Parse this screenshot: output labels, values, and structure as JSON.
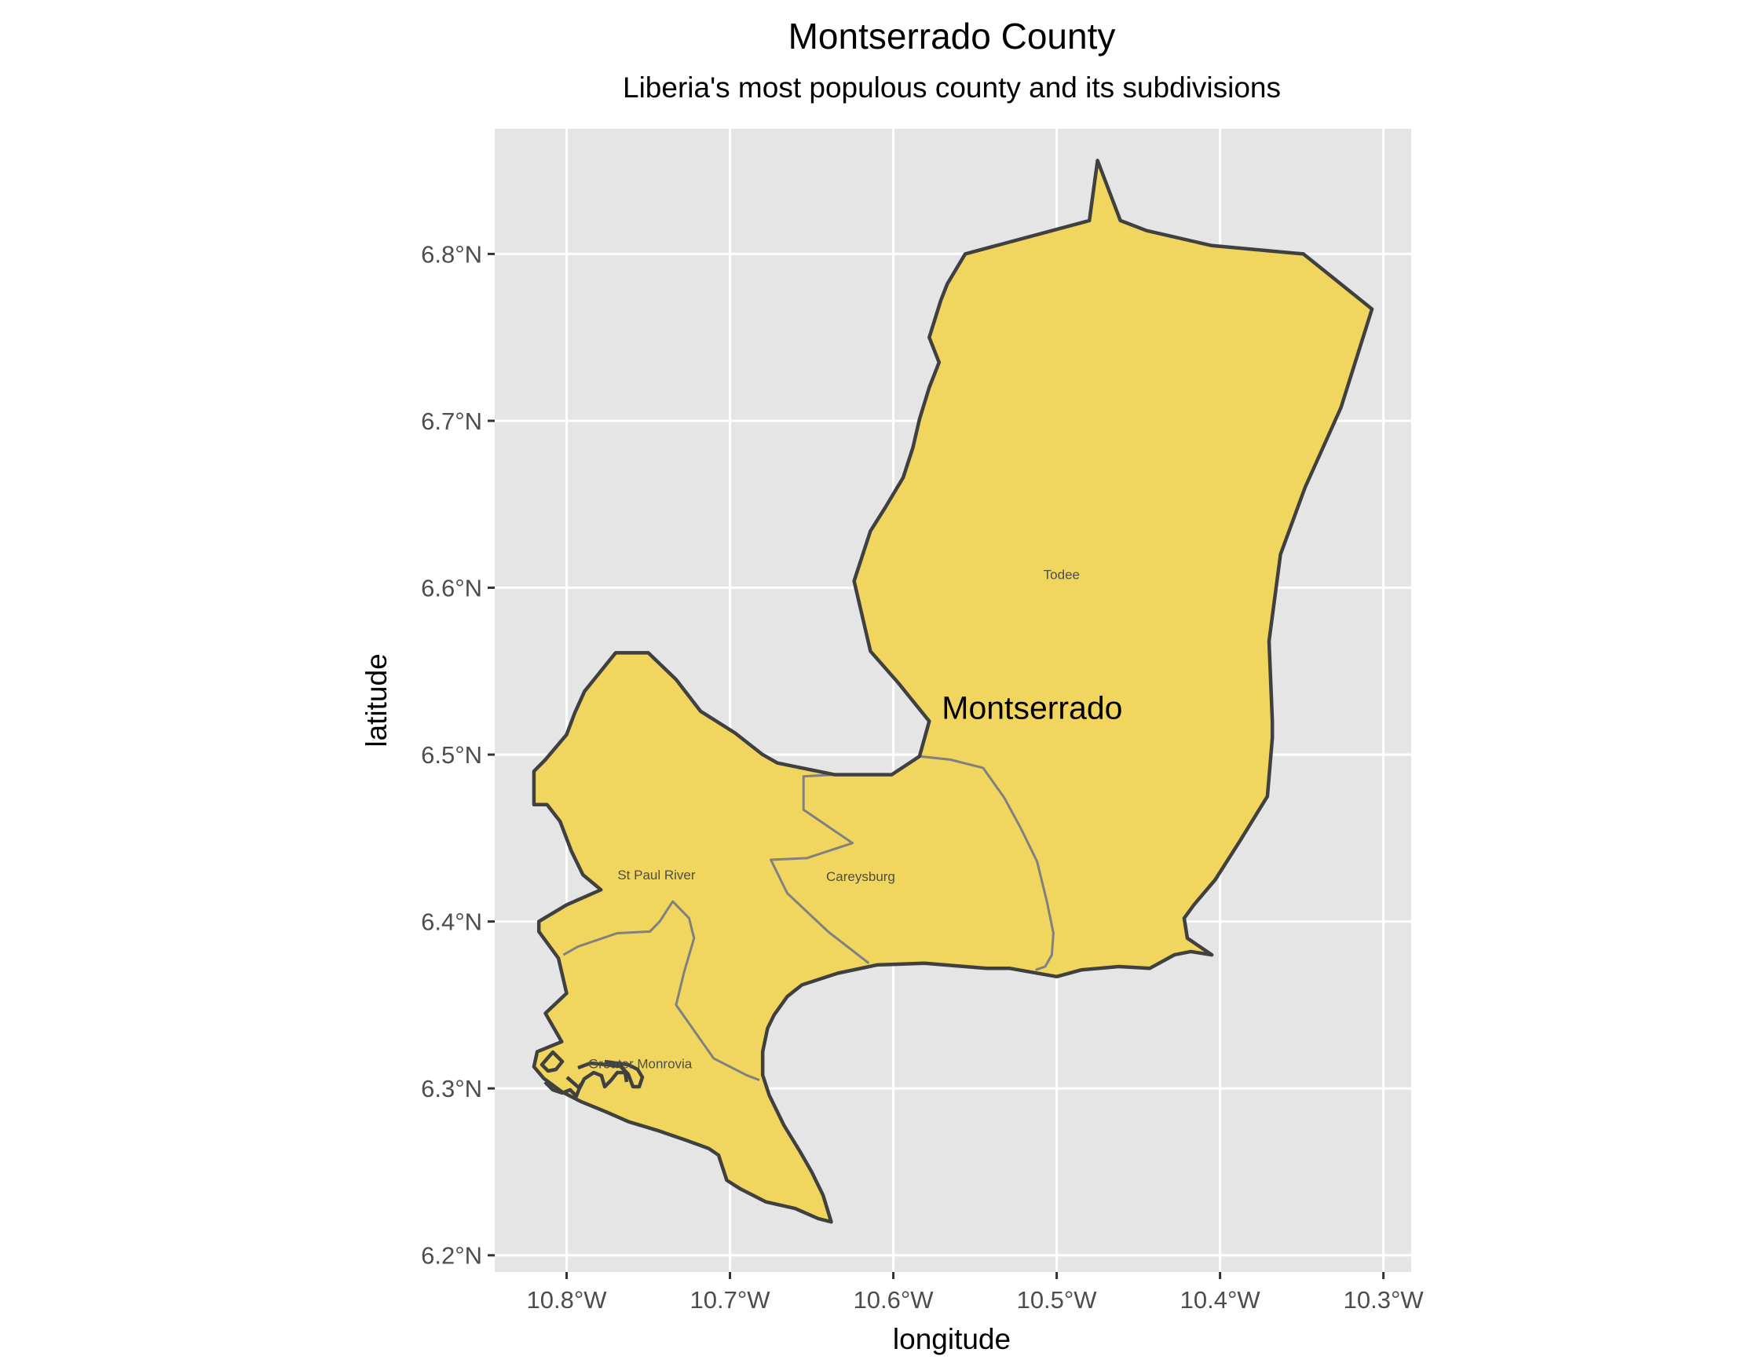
{
  "title": "Montserrado County",
  "subtitle": "Liberia's most populous county and its subdivisions",
  "x_axis": {
    "label": "longitude",
    "ticks": [
      {
        "value": -10.8,
        "label": "10.8°W"
      },
      {
        "value": -10.7,
        "label": "10.7°W"
      },
      {
        "value": -10.6,
        "label": "10.6°W"
      },
      {
        "value": -10.5,
        "label": "10.5°W"
      },
      {
        "value": -10.4,
        "label": "10.4°W"
      },
      {
        "value": -10.3,
        "label": "10.3°W"
      }
    ],
    "range": [
      -10.844,
      -10.283
    ]
  },
  "y_axis": {
    "label": "latitude",
    "ticks": [
      {
        "value": 6.2,
        "label": "6.2°N"
      },
      {
        "value": 6.3,
        "label": "6.3°N"
      },
      {
        "value": 6.4,
        "label": "6.4°N"
      },
      {
        "value": 6.5,
        "label": "6.5°N"
      },
      {
        "value": 6.6,
        "label": "6.6°N"
      },
      {
        "value": 6.7,
        "label": "6.7°N"
      },
      {
        "value": 6.8,
        "label": "6.8°N"
      }
    ],
    "range": [
      6.19,
      6.875
    ]
  },
  "colors": {
    "panel_bg": "#e5e5e5",
    "grid": "#ffffff",
    "fill": "#f0d55f",
    "county_border": "#404040",
    "district_border": "#808080",
    "tick_text": "#4d4d4d"
  },
  "county": {
    "name": "Montserrado",
    "label_at": [
      -10.515,
      6.528
    ],
    "outline": [
      [
        -10.475,
        6.856
      ],
      [
        -10.461,
        6.82
      ],
      [
        -10.445,
        6.814
      ],
      [
        -10.405,
        6.805
      ],
      [
        -10.349,
        6.8
      ],
      [
        -10.307,
        6.767
      ],
      [
        -10.326,
        6.708
      ],
      [
        -10.348,
        6.66
      ],
      [
        -10.363,
        6.62
      ],
      [
        -10.368,
        6.583
      ],
      [
        -10.37,
        6.568
      ],
      [
        -10.368,
        6.52
      ],
      [
        -10.368,
        6.51
      ],
      [
        -10.371,
        6.475
      ],
      [
        -10.388,
        6.448
      ],
      [
        -10.403,
        6.425
      ],
      [
        -10.416,
        6.41
      ],
      [
        -10.422,
        6.402
      ],
      [
        -10.42,
        6.39
      ],
      [
        -10.405,
        6.38
      ],
      [
        -10.418,
        6.382
      ],
      [
        -10.428,
        6.38
      ],
      [
        -10.443,
        6.372
      ],
      [
        -10.462,
        6.373
      ],
      [
        -10.485,
        6.371
      ],
      [
        -10.5,
        6.367
      ],
      [
        -10.529,
        6.372
      ],
      [
        -10.543,
        6.372
      ],
      [
        -10.581,
        6.375
      ],
      [
        -10.61,
        6.374
      ],
      [
        -10.634,
        6.369
      ],
      [
        -10.656,
        6.362
      ],
      [
        -10.665,
        6.355
      ],
      [
        -10.673,
        6.344
      ],
      [
        -10.677,
        6.336
      ],
      [
        -10.68,
        6.322
      ],
      [
        -10.68,
        6.308
      ],
      [
        -10.676,
        6.296
      ],
      [
        -10.667,
        6.278
      ],
      [
        -10.657,
        6.262
      ],
      [
        -10.65,
        6.25
      ],
      [
        -10.643,
        6.236
      ],
      [
        -10.638,
        6.22
      ],
      [
        -10.646,
        6.222
      ],
      [
        -10.66,
        6.228
      ],
      [
        -10.678,
        6.232
      ],
      [
        -10.694,
        6.24
      ],
      [
        -10.702,
        6.245
      ],
      [
        -10.707,
        6.26
      ],
      [
        -10.713,
        6.264
      ],
      [
        -10.727,
        6.269
      ],
      [
        -10.745,
        6.275
      ],
      [
        -10.762,
        6.28
      ],
      [
        -10.776,
        6.286
      ],
      [
        -10.791,
        6.292
      ],
      [
        -10.803,
        6.298
      ],
      [
        -10.814,
        6.306
      ],
      [
        -10.82,
        6.313
      ],
      [
        -10.818,
        6.322
      ],
      [
        -10.803,
        6.328
      ],
      [
        -10.813,
        6.345
      ],
      [
        -10.8,
        6.357
      ],
      [
        -10.805,
        6.378
      ],
      [
        -10.817,
        6.394
      ],
      [
        -10.817,
        6.4
      ],
      [
        -10.8,
        6.41
      ],
      [
        -10.779,
        6.419
      ],
      [
        -10.79,
        6.428
      ],
      [
        -10.797,
        6.442
      ],
      [
        -10.804,
        6.46
      ],
      [
        -10.812,
        6.47
      ],
      [
        -10.82,
        6.47
      ],
      [
        -10.82,
        6.49
      ],
      [
        -10.813,
        6.497
      ],
      [
        -10.8,
        6.512
      ],
      [
        -10.795,
        6.525
      ],
      [
        -10.789,
        6.538
      ],
      [
        -10.77,
        6.561
      ],
      [
        -10.75,
        6.561
      ],
      [
        -10.733,
        6.545
      ],
      [
        -10.718,
        6.526
      ],
      [
        -10.697,
        6.513
      ],
      [
        -10.68,
        6.5
      ],
      [
        -10.671,
        6.495
      ],
      [
        -10.636,
        6.488
      ],
      [
        -10.601,
        6.488
      ],
      [
        -10.584,
        6.499
      ],
      [
        -10.578,
        6.52
      ],
      [
        -10.597,
        6.543
      ],
      [
        -10.614,
        6.562
      ],
      [
        -10.624,
        6.604
      ],
      [
        -10.614,
        6.634
      ],
      [
        -10.605,
        6.648
      ],
      [
        -10.594,
        6.666
      ],
      [
        -10.588,
        6.684
      ],
      [
        -10.584,
        6.701
      ],
      [
        -10.578,
        6.72
      ],
      [
        -10.572,
        6.735
      ],
      [
        -10.578,
        6.75
      ],
      [
        -10.571,
        6.772
      ],
      [
        -10.567,
        6.782
      ],
      [
        -10.556,
        6.8
      ],
      [
        -10.48,
        6.82
      ]
    ]
  },
  "district_lines": [
    [
      [
        -10.584,
        6.499
      ],
      [
        -10.565,
        6.497
      ],
      [
        -10.545,
        6.492
      ],
      [
        -10.532,
        6.474
      ],
      [
        -10.522,
        6.456
      ],
      [
        -10.512,
        6.436
      ],
      [
        -10.506,
        6.412
      ],
      [
        -10.502,
        6.393
      ],
      [
        -10.503,
        6.38
      ],
      [
        -10.507,
        6.373
      ],
      [
        -10.513,
        6.371
      ]
    ],
    [
      [
        -10.636,
        6.488
      ],
      [
        -10.655,
        6.487
      ],
      [
        -10.655,
        6.467
      ],
      [
        -10.625,
        6.447
      ],
      [
        -10.653,
        6.438
      ],
      [
        -10.675,
        6.437
      ],
      [
        -10.665,
        6.417
      ],
      [
        -10.64,
        6.394
      ],
      [
        -10.615,
        6.375
      ]
    ],
    [
      [
        -10.802,
        6.38
      ],
      [
        -10.793,
        6.385
      ],
      [
        -10.769,
        6.393
      ],
      [
        -10.749,
        6.394
      ],
      [
        -10.743,
        6.4
      ],
      [
        -10.735,
        6.412
      ],
      [
        -10.725,
        6.402
      ],
      [
        -10.722,
        6.39
      ],
      [
        -10.728,
        6.37
      ],
      [
        -10.733,
        6.35
      ],
      [
        -10.72,
        6.332
      ],
      [
        -10.71,
        6.318
      ],
      [
        -10.69,
        6.308
      ],
      [
        -10.682,
        6.305
      ]
    ]
  ],
  "districts": [
    {
      "name": "Todee",
      "at": [
        -10.497,
        6.608
      ]
    },
    {
      "name": "St Paul River",
      "at": [
        -10.745,
        6.428
      ]
    },
    {
      "name": "Careysburg",
      "at": [
        -10.62,
        6.427
      ]
    },
    {
      "name": "Greater Monrovia",
      "at": [
        -10.755,
        6.315
      ]
    }
  ]
}
